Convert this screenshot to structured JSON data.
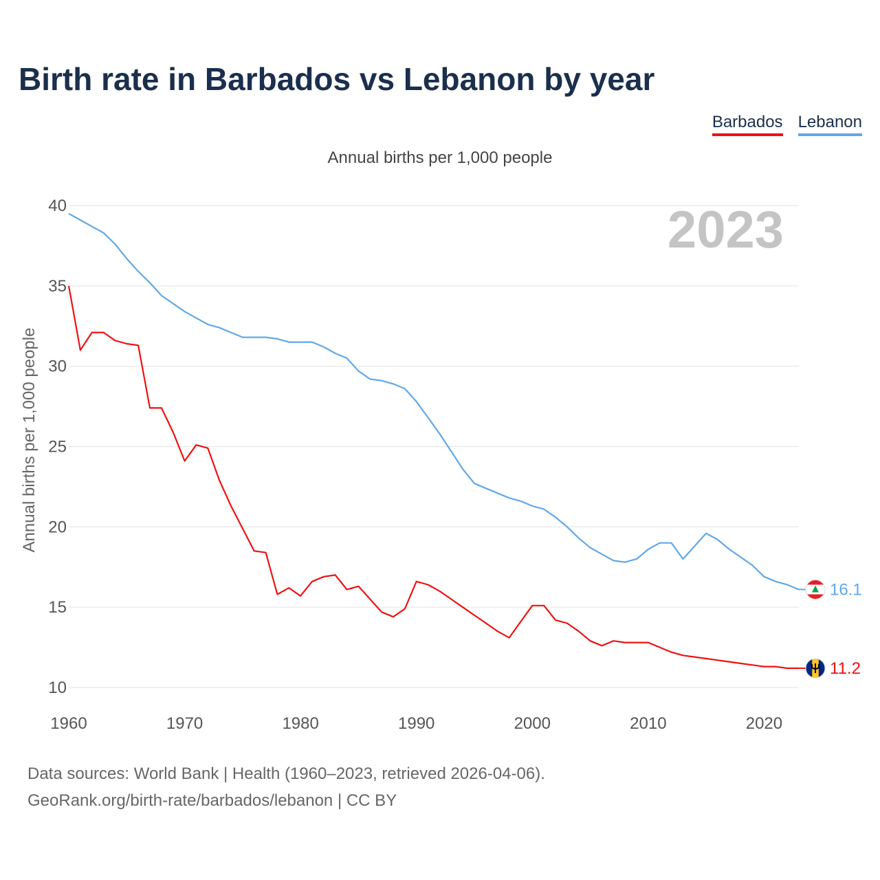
{
  "title": "Birth rate in Barbados vs Lebanon by year",
  "subtitle": "Annual births per 1,000 people",
  "legend": [
    {
      "label": "Barbados",
      "color": "#ee1111"
    },
    {
      "label": "Lebanon",
      "color": "#5ea8ea"
    }
  ],
  "year_watermark": "2023",
  "source_line1": "Data sources: World Bank | Health (1960–2023, retrieved 2026-04-06).",
  "source_line2": "GeoRank.org/birth-rate/barbados/lebanon | CC BY",
  "chart_data": {
    "type": "line",
    "title": "Birth rate in Barbados vs Lebanon by year",
    "ylabel": "Annual births per 1,000 people",
    "xlabel": "",
    "xlim": [
      1960,
      2023
    ],
    "ylim": [
      10,
      40
    ],
    "yticks": [
      10,
      15,
      20,
      25,
      30,
      35,
      40
    ],
    "xticks": [
      1960,
      1970,
      1980,
      1990,
      2000,
      2010,
      2020
    ],
    "grid": true,
    "x": [
      1960,
      1961,
      1962,
      1963,
      1964,
      1965,
      1966,
      1967,
      1968,
      1969,
      1970,
      1971,
      1972,
      1973,
      1974,
      1975,
      1976,
      1977,
      1978,
      1979,
      1980,
      1981,
      1982,
      1983,
      1984,
      1985,
      1986,
      1987,
      1988,
      1989,
      1990,
      1991,
      1992,
      1993,
      1994,
      1995,
      1996,
      1997,
      1998,
      1999,
      2000,
      2001,
      2002,
      2003,
      2004,
      2005,
      2006,
      2007,
      2008,
      2009,
      2010,
      2011,
      2012,
      2013,
      2014,
      2015,
      2016,
      2017,
      2018,
      2019,
      2020,
      2021,
      2022,
      2023
    ],
    "series": [
      {
        "name": "Barbados",
        "color": "#ee1111",
        "end_label": "11.2",
        "flag": "barbados",
        "values": [
          35.0,
          31.0,
          32.1,
          32.1,
          31.6,
          31.4,
          31.3,
          27.4,
          27.4,
          25.9,
          24.1,
          25.1,
          24.9,
          22.9,
          21.3,
          19.9,
          18.5,
          18.4,
          15.8,
          16.2,
          15.7,
          16.6,
          16.9,
          17.0,
          16.1,
          16.3,
          15.5,
          14.7,
          14.4,
          14.9,
          16.6,
          16.4,
          16.0,
          15.5,
          15.0,
          14.5,
          14.0,
          13.5,
          13.1,
          14.1,
          15.1,
          15.1,
          14.2,
          14.0,
          13.5,
          12.9,
          12.6,
          12.9,
          12.8,
          12.8,
          12.8,
          12.5,
          12.2,
          12.0,
          11.9,
          11.8,
          11.7,
          11.6,
          11.5,
          11.4,
          11.3,
          11.3,
          11.2,
          11.2
        ]
      },
      {
        "name": "Lebanon",
        "color": "#5ea8ea",
        "end_label": "16.1",
        "flag": "lebanon",
        "values": [
          39.5,
          39.1,
          38.7,
          38.3,
          37.6,
          36.7,
          35.9,
          35.2,
          34.4,
          33.9,
          33.4,
          33.0,
          32.6,
          32.4,
          32.1,
          31.8,
          31.8,
          31.8,
          31.7,
          31.5,
          31.5,
          31.5,
          31.2,
          30.8,
          30.5,
          29.7,
          29.2,
          29.1,
          28.9,
          28.6,
          27.8,
          26.8,
          25.8,
          24.7,
          23.6,
          22.7,
          22.4,
          22.1,
          21.8,
          21.6,
          21.3,
          21.1,
          20.6,
          20.0,
          19.3,
          18.7,
          18.3,
          17.9,
          17.8,
          18.0,
          18.6,
          19.0,
          19.0,
          18.0,
          18.8,
          19.6,
          19.2,
          18.6,
          18.1,
          17.6,
          16.9,
          16.6,
          16.4,
          16.1
        ]
      }
    ]
  }
}
